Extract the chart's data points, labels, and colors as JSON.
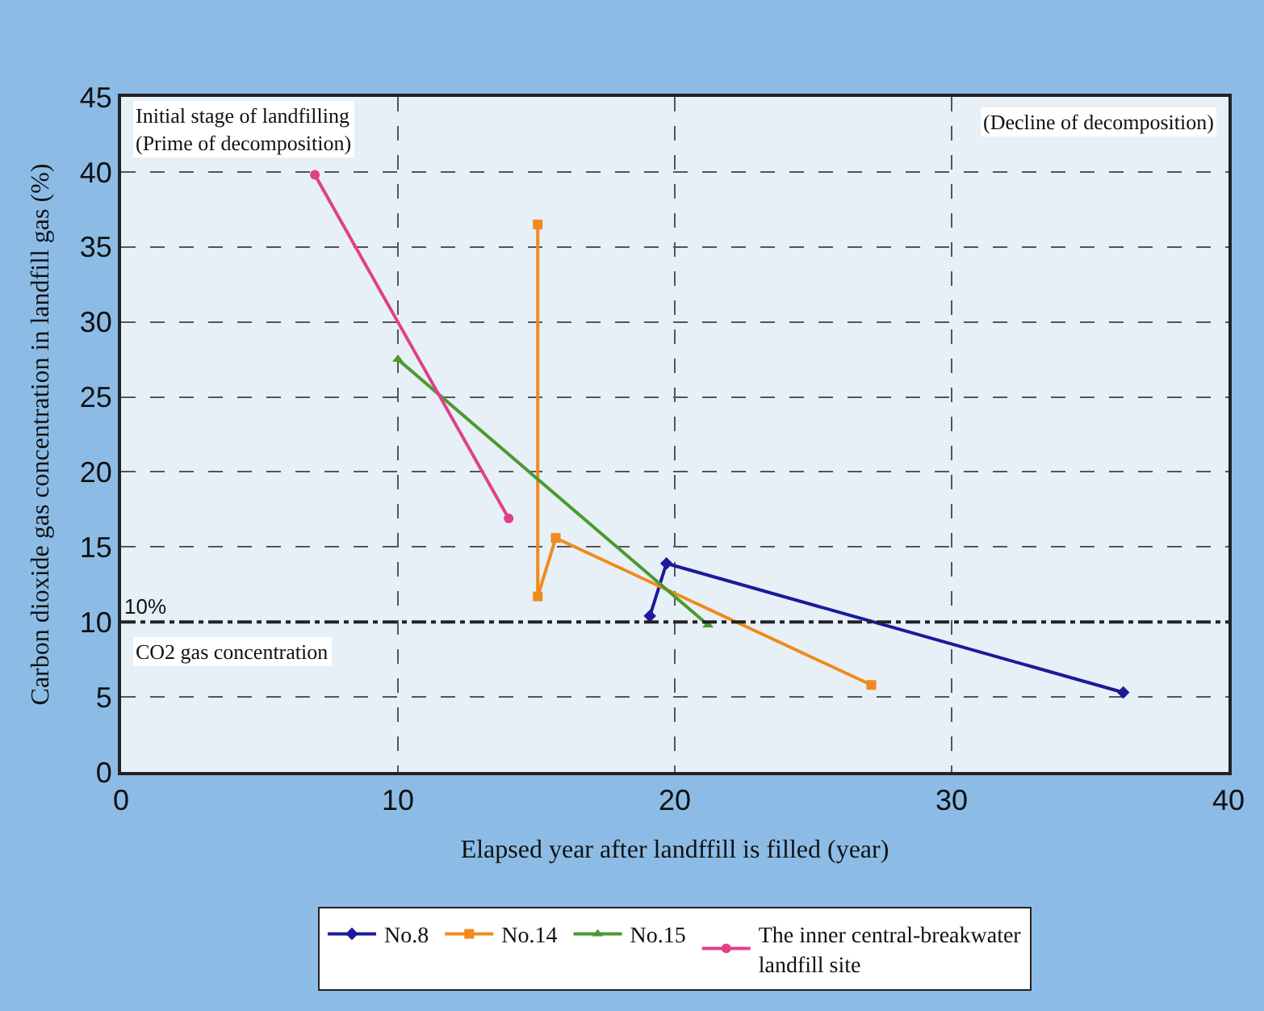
{
  "chart_data": {
    "type": "line",
    "xlabel": "Elapsed year after landffill is filled (year)",
    "ylabel": "Carbon dioxide gas concentration in landfill gas (%)",
    "xlim": [
      0,
      40
    ],
    "xticks": [
      0,
      10,
      20,
      30,
      40
    ],
    "ylim": [
      0,
      45
    ],
    "yticks": [
      0,
      5,
      10,
      15,
      20,
      25,
      30,
      35,
      40,
      45
    ],
    "grid": true,
    "legend": "bottom",
    "line_style": "solid",
    "series": [
      {
        "name": "No.8",
        "color": "#1a1a9a",
        "marker": "diamond",
        "x": [
          19.1,
          19.7,
          36.2
        ],
        "values": [
          10.4,
          13.9,
          5.3
        ]
      },
      {
        "name": "No.14",
        "color": "#f08a1e",
        "marker": "square",
        "x": [
          15.05,
          15.05,
          15.7,
          27.1
        ],
        "values": [
          36.5,
          11.7,
          15.6,
          5.8
        ]
      },
      {
        "name": "No.15",
        "color": "#4a9a30",
        "marker": "triangle",
        "x": [
          10,
          21.2
        ],
        "values": [
          27.5,
          9.8
        ]
      },
      {
        "name": "The inner central-breakwater landfill site",
        "color": "#e0408a",
        "marker": "circle",
        "x": [
          7,
          14
        ],
        "values": [
          39.8,
          16.9
        ]
      }
    ],
    "ref_lines": [
      {
        "axis": "y",
        "value": 10,
        "label": "10%",
        "color": "#222222",
        "line_style": "dashdot"
      }
    ],
    "annotations": [
      "Initial stage of landfilling\n(Prime of decomposition)",
      "(Decline of decomposition)",
      "CO2 gas concentration"
    ]
  }
}
